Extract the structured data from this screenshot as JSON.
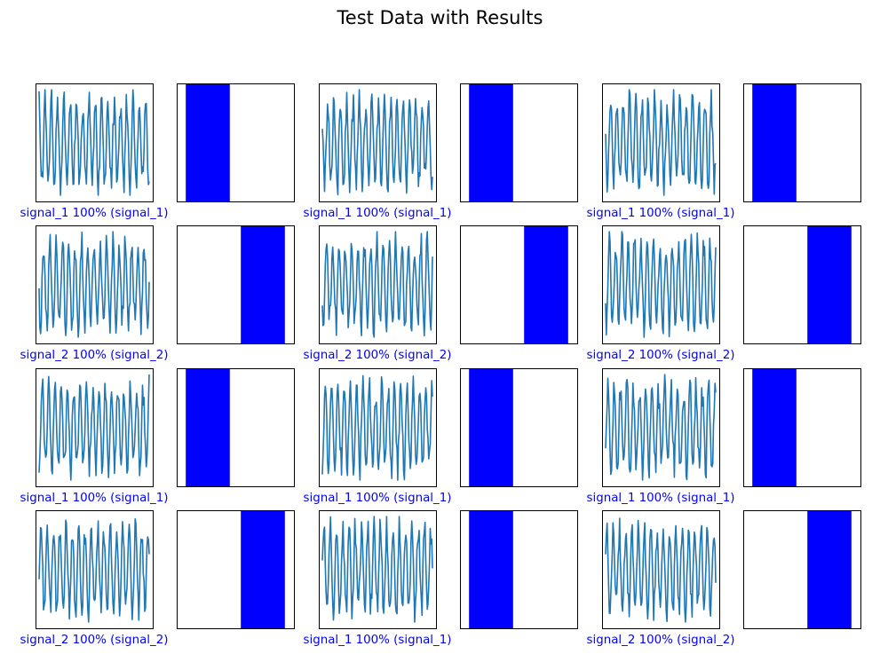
{
  "title": "Test Data with Results",
  "colors": {
    "signal": "#1f77b4",
    "bar": "#0000ff",
    "caption": "#0000ff",
    "axes": "#000000"
  },
  "chart_data": {
    "type": "grid",
    "rows": 4,
    "pairs_per_row": 3,
    "classes": [
      "signal_1",
      "signal_2"
    ],
    "samples": [
      {
        "prediction": "signal_1",
        "confidence": "100%",
        "actual": "signal_1",
        "bar_values": [
          1,
          0
        ]
      },
      {
        "prediction": "signal_1",
        "confidence": "100%",
        "actual": "signal_1",
        "bar_values": [
          1,
          0
        ]
      },
      {
        "prediction": "signal_1",
        "confidence": "100%",
        "actual": "signal_1",
        "bar_values": [
          1,
          0
        ]
      },
      {
        "prediction": "signal_2",
        "confidence": "100%",
        "actual": "signal_2",
        "bar_values": [
          0,
          1
        ]
      },
      {
        "prediction": "signal_2",
        "confidence": "100%",
        "actual": "signal_2",
        "bar_values": [
          0,
          1
        ]
      },
      {
        "prediction": "signal_2",
        "confidence": "100%",
        "actual": "signal_2",
        "bar_values": [
          0,
          1
        ]
      },
      {
        "prediction": "signal_1",
        "confidence": "100%",
        "actual": "signal_1",
        "bar_values": [
          1,
          0
        ]
      },
      {
        "prediction": "signal_1",
        "confidence": "100%",
        "actual": "signal_1",
        "bar_values": [
          1,
          0
        ]
      },
      {
        "prediction": "signal_1",
        "confidence": "100%",
        "actual": "signal_1",
        "bar_values": [
          1,
          0
        ]
      },
      {
        "prediction": "signal_2",
        "confidence": "100%",
        "actual": "signal_2",
        "bar_values": [
          0,
          1
        ]
      },
      {
        "prediction": "signal_1",
        "confidence": "100%",
        "actual": "signal_1",
        "bar_values": [
          1,
          0
        ]
      },
      {
        "prediction": "signal_2",
        "confidence": "100%",
        "actual": "signal_2",
        "bar_values": [
          0,
          1
        ]
      }
    ],
    "signal_plot": {
      "grid": false,
      "ticks": false
    },
    "bar_plot": {
      "type": "bar",
      "categories": [
        "signal_1",
        "signal_2"
      ],
      "ylim": [
        0,
        1
      ],
      "ticks": false
    }
  }
}
